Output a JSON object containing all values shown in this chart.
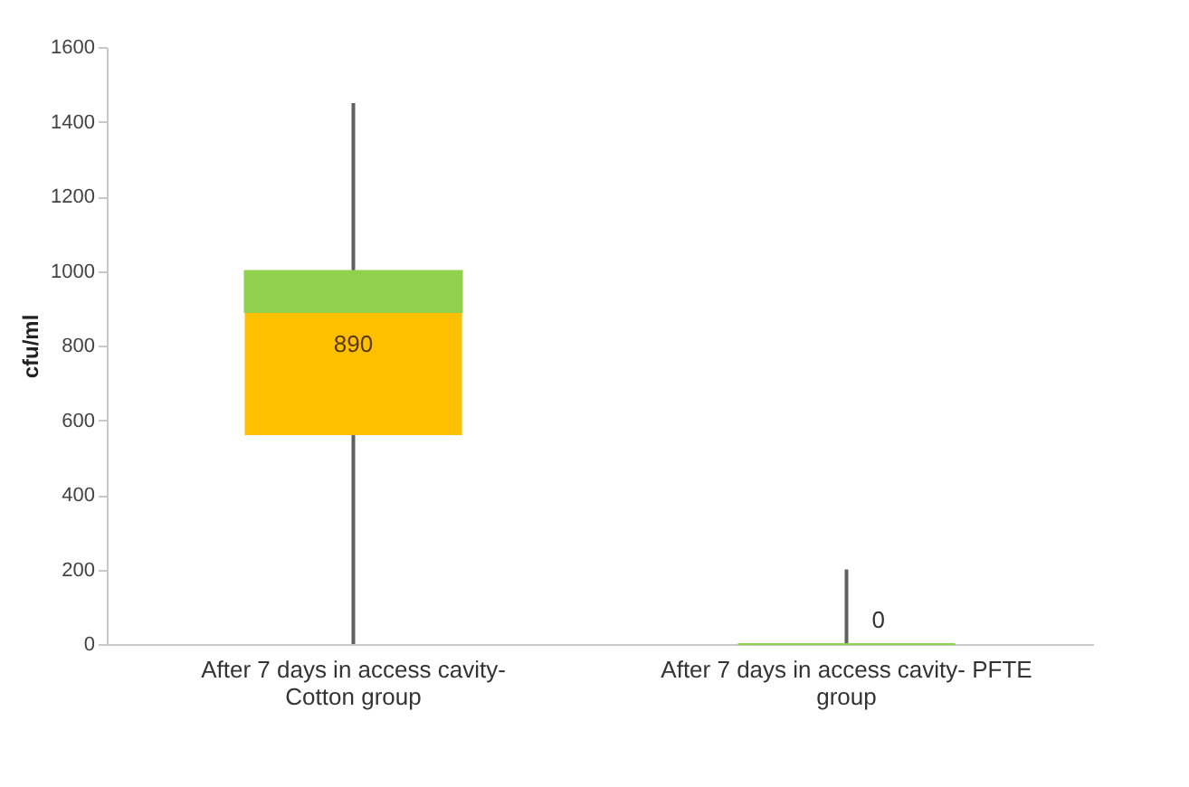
{
  "chart_data": {
    "type": "box",
    "ylabel": "cfu/ml",
    "categories": [
      "After 7 days in access cavity- Cotton group",
      "After 7 days in access cavity- PFTE group"
    ],
    "boxes": [
      {
        "low": 0,
        "q1": 560,
        "median": 890,
        "q3": 1000,
        "high": 1450
      },
      {
        "low": 0,
        "q1": 0,
        "median": 0,
        "q3": 0,
        "high": 200
      }
    ],
    "colors": [
      "#ffc000",
      "#92d050"
    ],
    "annotations": [
      {
        "text": "890",
        "x": "After 7 days in access cavity- Cotton group",
        "y": 890
      },
      {
        "text": "0",
        "x": "After 7 days in access cavity- PFTE group",
        "y": 0
      }
    ],
    "ylim": [
      0,
      1600
    ],
    "yticks": [
      0,
      200,
      400,
      600,
      800,
      1000,
      1200,
      1400,
      1600
    ],
    "grid": false
  }
}
